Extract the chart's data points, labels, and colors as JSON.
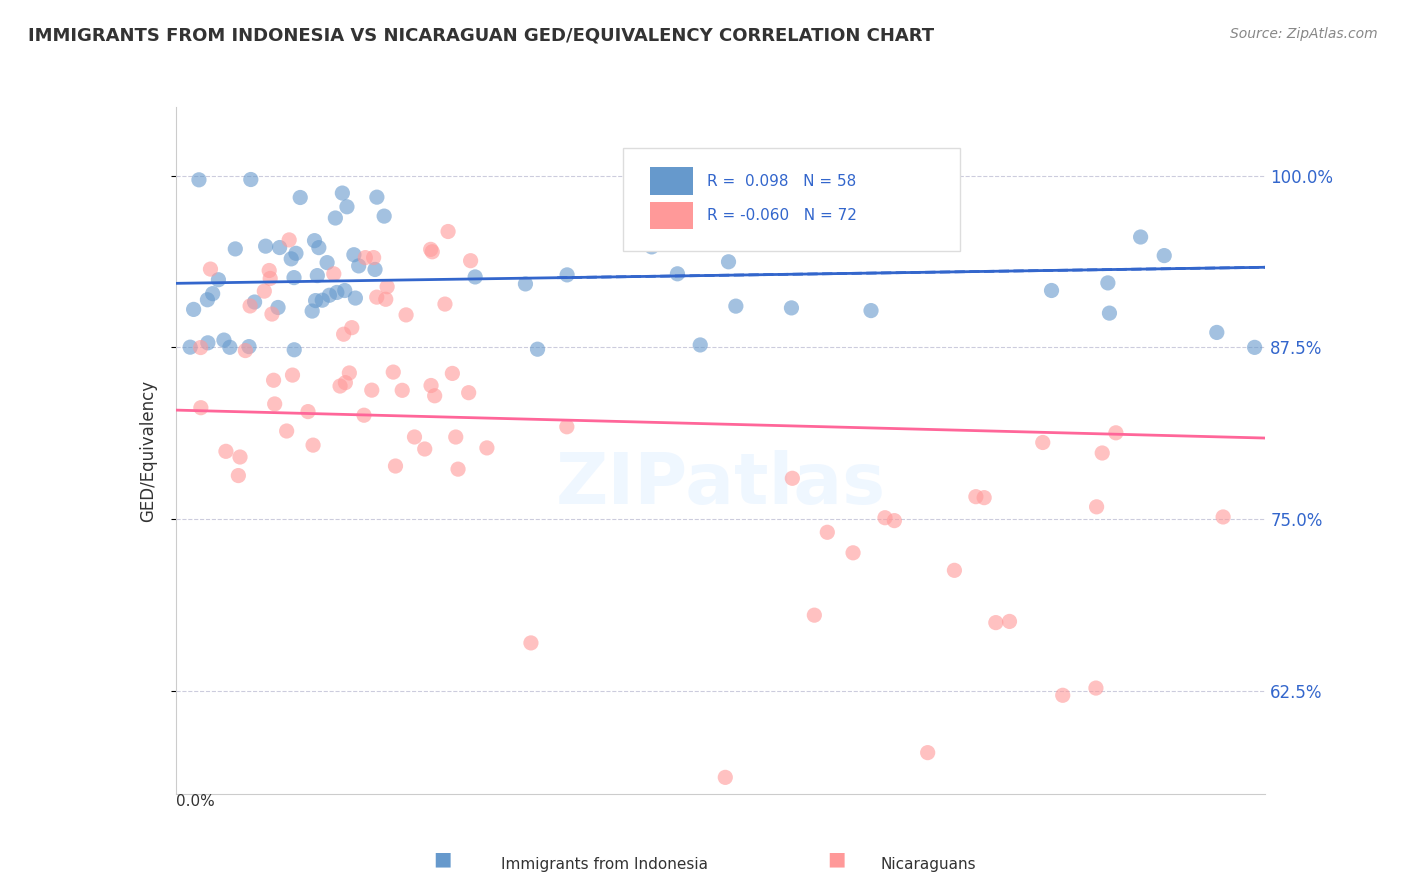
{
  "title": "IMMIGRANTS FROM INDONESIA VS NICARAGUAN GED/EQUIVALENCY CORRELATION CHART",
  "source": "Source: ZipAtlas.com",
  "ylabel": "GED/Equivalency",
  "ytick_labels": [
    "62.5%",
    "75.0%",
    "87.5%",
    "100.0%"
  ],
  "ytick_values": [
    0.625,
    0.75,
    0.875,
    1.0
  ],
  "xlim": [
    0.0,
    0.4
  ],
  "ylim": [
    0.55,
    1.05
  ],
  "blue_r": 0.098,
  "pink_r": -0.06,
  "blue_color": "#6699CC",
  "pink_color": "#FF9999",
  "blue_line_color": "#3366CC",
  "pink_line_color": "#FF6699",
  "watermark": "ZIPatlas"
}
